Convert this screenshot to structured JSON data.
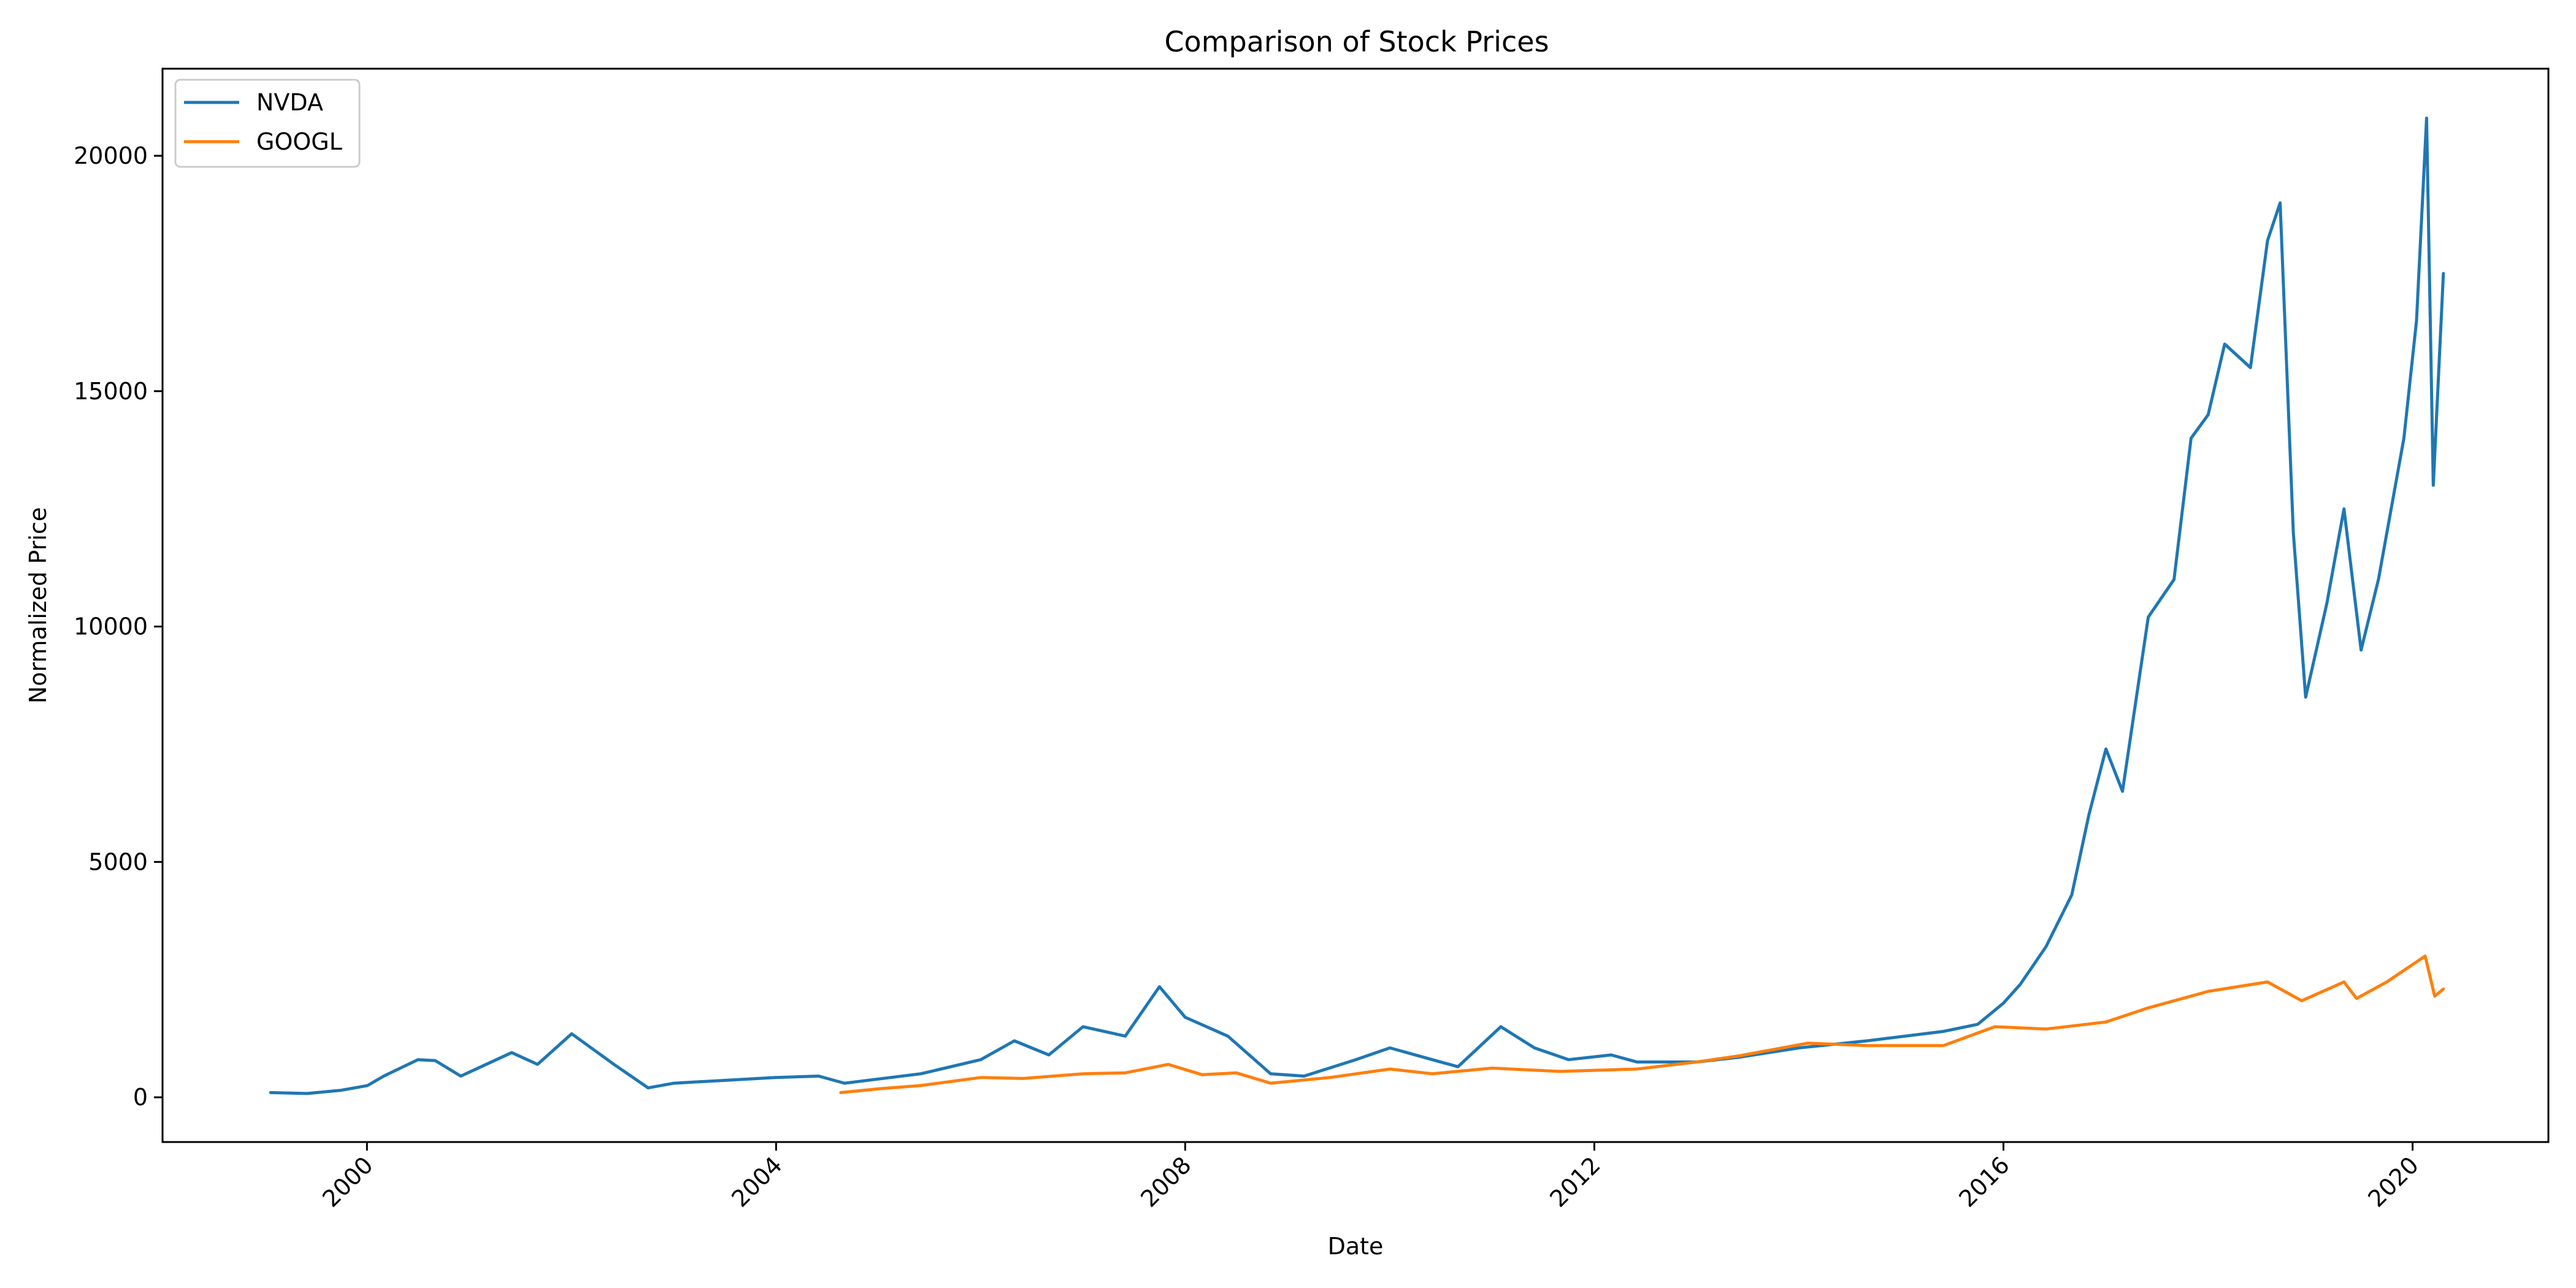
{
  "chart_data": {
    "type": "line",
    "title": "Comparison of Stock Prices",
    "xlabel": "Date",
    "ylabel": "Normalized Price",
    "x_ticks": [
      "2000",
      "2004",
      "2008",
      "2012",
      "2016",
      "2020"
    ],
    "y_ticks": [
      "0",
      "5000",
      "10000",
      "15000",
      "20000"
    ],
    "xlim": [
      "1998-01-01",
      "2021-04-30"
    ],
    "ylim": [
      -950,
      21850
    ],
    "grid": false,
    "legend_placement": "top-left",
    "series": [
      {
        "name": "NVDA",
        "color": "#1f77b4",
        "points": [
          [
            "1999-01-22",
            100
          ],
          [
            "1999-06-01",
            80
          ],
          [
            "1999-10-01",
            150
          ],
          [
            "2000-01-03",
            250
          ],
          [
            "2000-03-01",
            450
          ],
          [
            "2000-07-01",
            800
          ],
          [
            "2000-09-01",
            780
          ],
          [
            "2000-12-01",
            450
          ],
          [
            "2001-06-01",
            950
          ],
          [
            "2001-09-01",
            700
          ],
          [
            "2002-01-01",
            1350
          ],
          [
            "2002-06-01",
            700
          ],
          [
            "2002-10-01",
            200
          ],
          [
            "2003-01-01",
            300
          ],
          [
            "2003-06-01",
            350
          ],
          [
            "2004-01-01",
            420
          ],
          [
            "2004-06-01",
            450
          ],
          [
            "2004-09-01",
            300
          ],
          [
            "2005-06-01",
            500
          ],
          [
            "2006-01-01",
            800
          ],
          [
            "2006-05-01",
            1200
          ],
          [
            "2006-09-01",
            900
          ],
          [
            "2007-01-01",
            1500
          ],
          [
            "2007-06-01",
            1300
          ],
          [
            "2007-10-01",
            2350
          ],
          [
            "2008-01-01",
            1700
          ],
          [
            "2008-06-01",
            1300
          ],
          [
            "2008-11-01",
            500
          ],
          [
            "2009-03-01",
            450
          ],
          [
            "2009-09-01",
            800
          ],
          [
            "2010-01-01",
            1050
          ],
          [
            "2010-06-01",
            800
          ],
          [
            "2010-09-01",
            650
          ],
          [
            "2011-02-01",
            1500
          ],
          [
            "2011-06-01",
            1050
          ],
          [
            "2011-10-01",
            800
          ],
          [
            "2012-03-01",
            900
          ],
          [
            "2012-06-01",
            750
          ],
          [
            "2013-01-01",
            750
          ],
          [
            "2013-06-01",
            850
          ],
          [
            "2014-01-01",
            1050
          ],
          [
            "2014-09-01",
            1200
          ],
          [
            "2015-06-01",
            1400
          ],
          [
            "2015-10-01",
            1550
          ],
          [
            "2016-01-01",
            2000
          ],
          [
            "2016-03-01",
            2400
          ],
          [
            "2016-06-01",
            3200
          ],
          [
            "2016-09-01",
            4300
          ],
          [
            "2016-11-01",
            6000
          ],
          [
            "2017-01-01",
            7400
          ],
          [
            "2017-03-01",
            6500
          ],
          [
            "2017-06-01",
            10200
          ],
          [
            "2017-09-01",
            11000
          ],
          [
            "2017-11-01",
            14000
          ],
          [
            "2018-01-01",
            14500
          ],
          [
            "2018-03-01",
            16000
          ],
          [
            "2018-06-01",
            15500
          ],
          [
            "2018-08-01",
            18200
          ],
          [
            "2018-09-15",
            19000
          ],
          [
            "2018-11-01",
            12000
          ],
          [
            "2018-12-15",
            8500
          ],
          [
            "2019-03-01",
            10500
          ],
          [
            "2019-05-01",
            12500
          ],
          [
            "2019-07-01",
            9500
          ],
          [
            "2019-09-01",
            11000
          ],
          [
            "2019-12-01",
            14000
          ],
          [
            "2020-01-15",
            16500
          ],
          [
            "2020-02-20",
            20800
          ],
          [
            "2020-03-15",
            13000
          ],
          [
            "2020-04-20",
            17500
          ]
        ]
      },
      {
        "name": "GOOGL",
        "color": "#ff7f0e",
        "points": [
          [
            "2004-08-19",
            100
          ],
          [
            "2005-01-01",
            180
          ],
          [
            "2005-06-01",
            250
          ],
          [
            "2006-01-01",
            420
          ],
          [
            "2006-06-01",
            400
          ],
          [
            "2007-01-01",
            500
          ],
          [
            "2007-06-01",
            520
          ],
          [
            "2007-11-01",
            700
          ],
          [
            "2008-03-01",
            480
          ],
          [
            "2008-07-01",
            520
          ],
          [
            "2008-11-01",
            300
          ],
          [
            "2009-06-01",
            420
          ],
          [
            "2010-01-01",
            600
          ],
          [
            "2010-06-01",
            500
          ],
          [
            "2011-01-01",
            620
          ],
          [
            "2011-09-01",
            550
          ],
          [
            "2012-06-01",
            600
          ],
          [
            "2013-01-01",
            750
          ],
          [
            "2013-06-01",
            880
          ],
          [
            "2014-02-01",
            1150
          ],
          [
            "2014-09-01",
            1100
          ],
          [
            "2015-06-01",
            1100
          ],
          [
            "2015-12-01",
            1500
          ],
          [
            "2016-06-01",
            1450
          ],
          [
            "2017-01-01",
            1600
          ],
          [
            "2017-06-01",
            1900
          ],
          [
            "2018-01-01",
            2250
          ],
          [
            "2018-08-01",
            2450
          ],
          [
            "2018-12-01",
            2050
          ],
          [
            "2019-05-01",
            2450
          ],
          [
            "2019-06-15",
            2100
          ],
          [
            "2019-10-01",
            2450
          ],
          [
            "2020-02-15",
            3000
          ],
          [
            "2020-03-20",
            2150
          ],
          [
            "2020-04-20",
            2300
          ]
        ]
      }
    ]
  }
}
